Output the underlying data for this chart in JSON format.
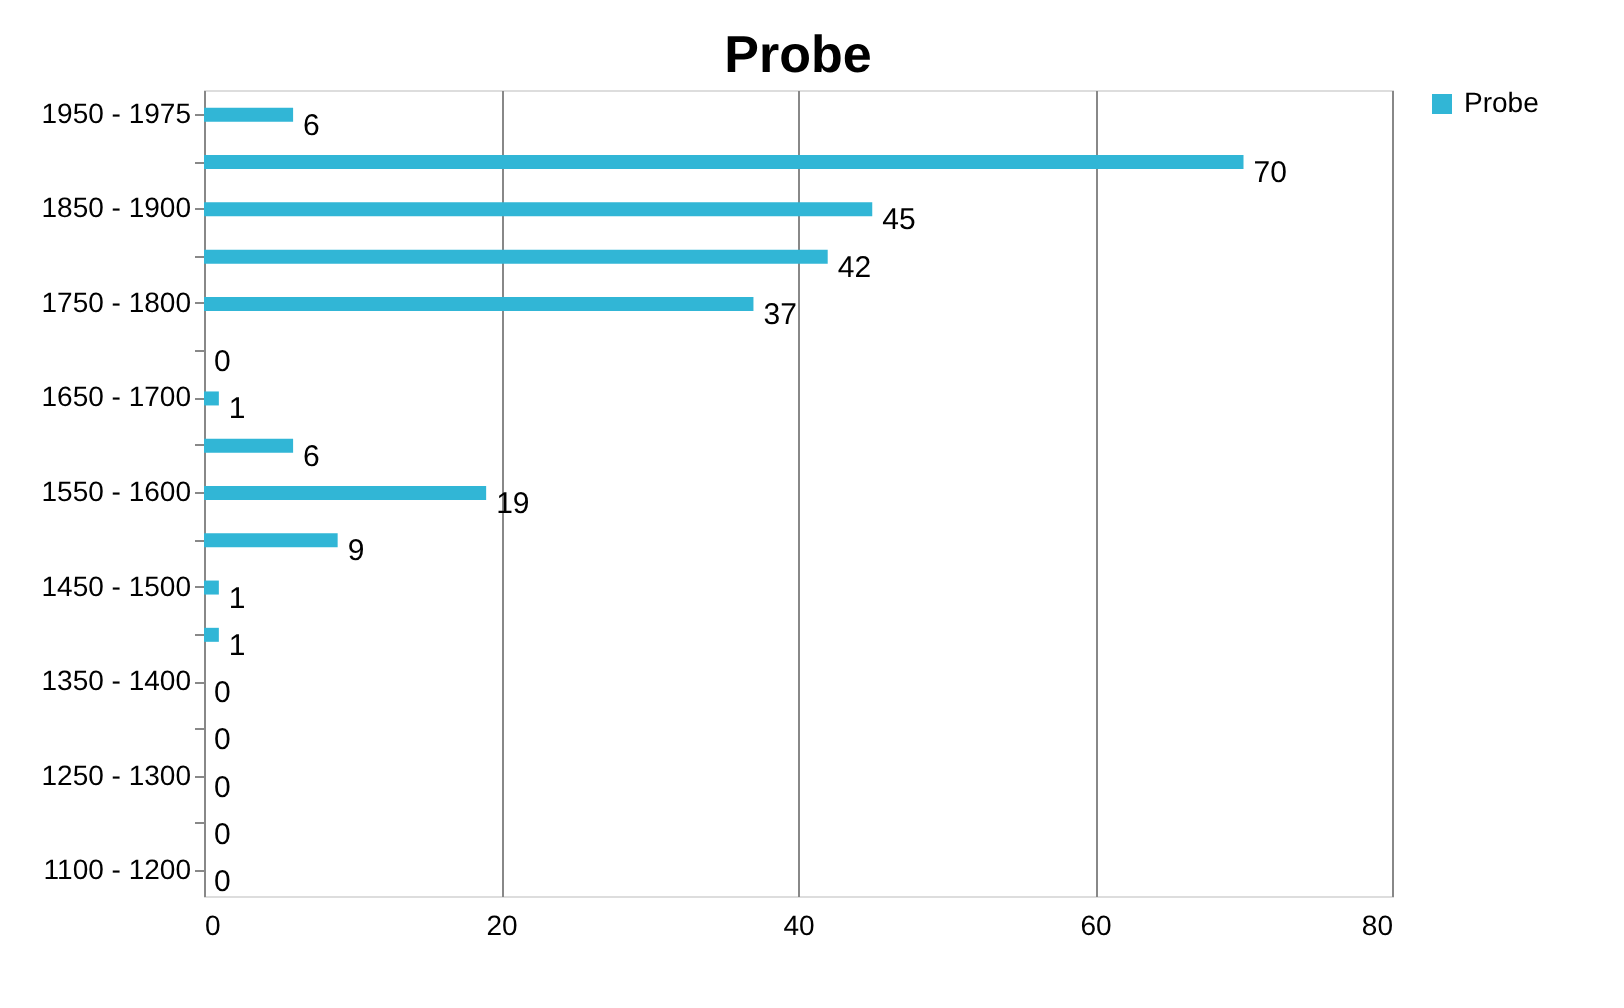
{
  "chart_data": {
    "type": "bar",
    "orientation": "horizontal",
    "title": "Probe",
    "categories": [
      "1950 - 1975",
      null,
      "1850 - 1900",
      null,
      "1750 - 1800",
      null,
      "1650 - 1700",
      null,
      "1550 - 1600",
      null,
      "1450 - 1500",
      null,
      "1350 - 1400",
      null,
      "1250 - 1300",
      null,
      "1100 - 1200"
    ],
    "series": [
      {
        "name": "Probe",
        "color": "#31b6d6",
        "values": [
          6,
          70,
          45,
          42,
          37,
          0,
          1,
          6,
          19,
          9,
          1,
          1,
          0,
          0,
          0,
          0,
          0
        ]
      }
    ],
    "xlim": [
      0,
      80
    ],
    "xticks": [
      0,
      20,
      40,
      60,
      80
    ],
    "grid": "x",
    "legend": "right",
    "data_labels": true
  }
}
